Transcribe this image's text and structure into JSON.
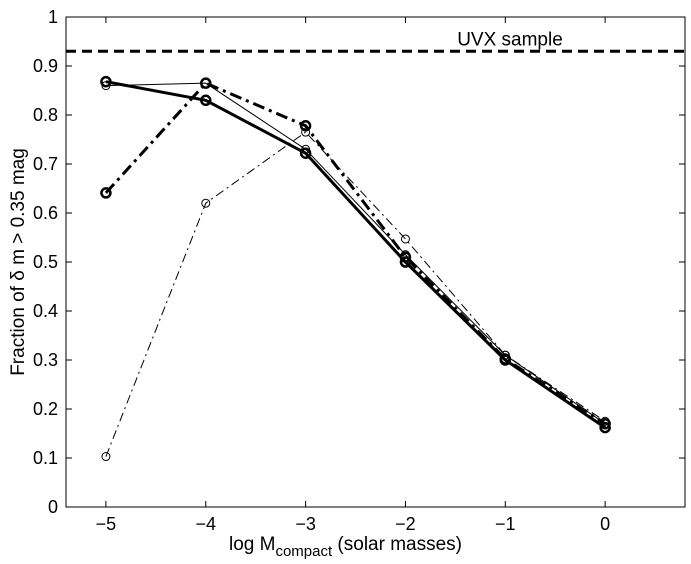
{
  "chart_data": {
    "type": "line",
    "title": "",
    "xlabel": {
      "prefix": "log M",
      "subscript": "compact",
      "suffix": " (solar masses)"
    },
    "ylabel": "Fraction of δ m > 0.35 mag",
    "xlim": [
      -5.4,
      0.8
    ],
    "ylim": [
      0,
      1
    ],
    "xticks": [
      -5,
      -4,
      -3,
      -2,
      -1,
      0
    ],
    "xtick_labels": [
      "−5",
      "−4",
      "−3",
      "−2",
      "−1",
      "0"
    ],
    "yticks": [
      0,
      0.1,
      0.2,
      0.3,
      0.4,
      0.5,
      0.6,
      0.7,
      0.8,
      0.9,
      1
    ],
    "ytick_labels": [
      "0",
      "0.1",
      "0.2",
      "0.3",
      "0.4",
      "0.5",
      "0.6",
      "0.7",
      "0.8",
      "0.9",
      "1"
    ],
    "grid": false,
    "reference_line": {
      "y": 0.93,
      "label": "UVX sample",
      "style": "dashed"
    },
    "x": [
      -5,
      -4,
      -3,
      -2,
      -1,
      0
    ],
    "series": [
      {
        "name": "thin solid",
        "style": "solid",
        "weight": "thin",
        "values": [
          0.86,
          0.865,
          0.73,
          0.515,
          0.31,
          0.17
        ]
      },
      {
        "name": "thick solid",
        "style": "solid",
        "weight": "thick",
        "values": [
          0.868,
          0.83,
          0.722,
          0.5,
          0.3,
          0.162
        ]
      },
      {
        "name": "thin dash-dot",
        "style": "dashdot",
        "weight": "thin",
        "values": [
          0.103,
          0.62,
          0.765,
          0.547,
          0.31,
          0.175
        ]
      },
      {
        "name": "thick dash-dot",
        "style": "dashdot",
        "weight": "thick",
        "values": [
          0.641,
          0.865,
          0.778,
          0.51,
          0.302,
          0.17
        ]
      }
    ]
  }
}
